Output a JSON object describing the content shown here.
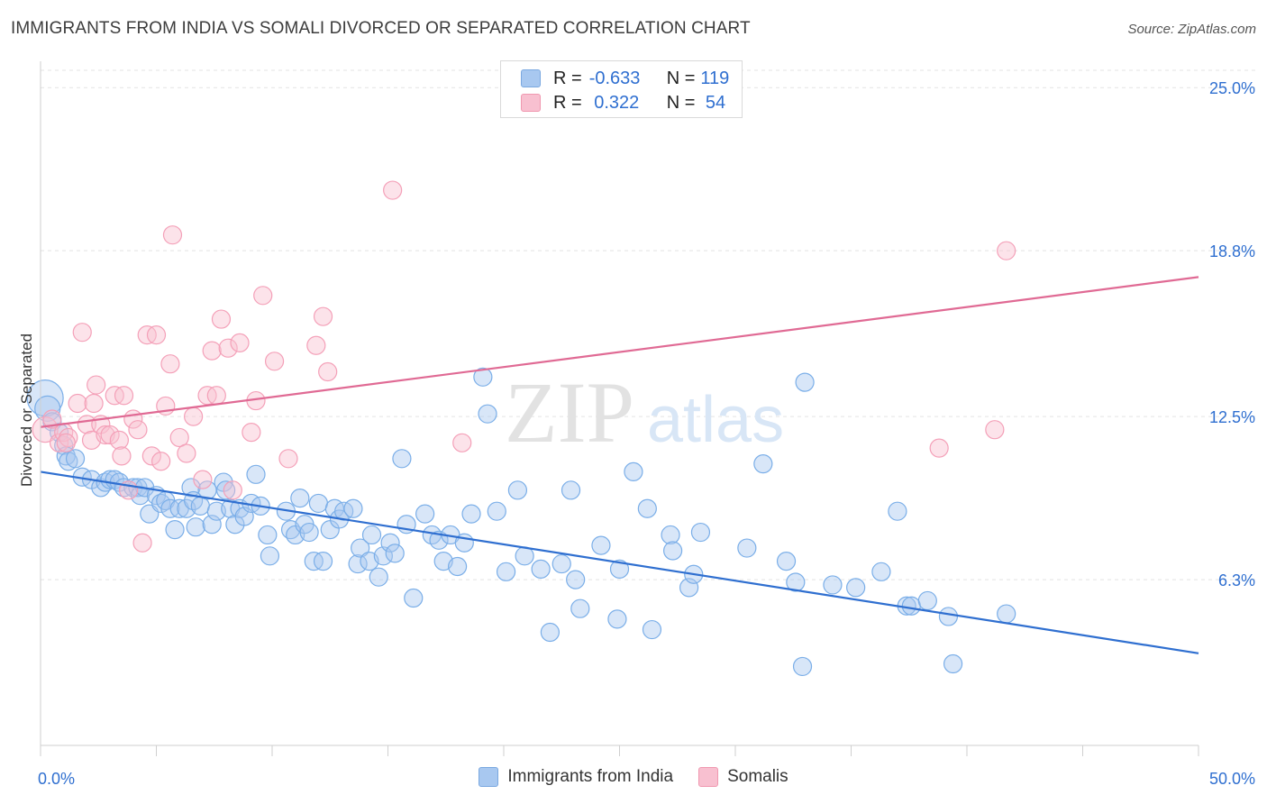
{
  "title": "IMMIGRANTS FROM INDIA VS SOMALI DIVORCED OR SEPARATED CORRELATION CHART",
  "source": "Source: ZipAtlas.com",
  "watermark": {
    "zip": "ZIP",
    "atlas": "atlas"
  },
  "legend_stats": [
    {
      "r_label": "R = ",
      "r_value": "-0.633",
      "n_label": "N = ",
      "n_value": "119",
      "color": "#a8c8f0",
      "border": "#7aa8e0"
    },
    {
      "r_label": "R = ",
      "r_value": " 0.322",
      "n_label": "N = ",
      "n_value": " 54",
      "color": "#f8c0d0",
      "border": "#f098b0"
    }
  ],
  "bottom_legend": [
    {
      "label": "Immigrants from India",
      "color": "#a8c8f0",
      "border": "#7aa8e0"
    },
    {
      "label": "Somalis",
      "color": "#f8c0d0",
      "border": "#f098b0"
    }
  ],
  "chart_data": {
    "type": "scatter",
    "title": "IMMIGRANTS FROM INDIA VS SOMALI DIVORCED OR SEPARATED CORRELATION CHART",
    "xlabel": "",
    "ylabel": "Divorced or Separated",
    "xlim": [
      0,
      50
    ],
    "ylim": [
      0,
      26
    ],
    "x_tick_labels": [
      "0.0%",
      "50.0%"
    ],
    "y_ticks": [
      6.3,
      12.5,
      18.8,
      25.0
    ],
    "y_tick_labels": [
      "6.3%",
      "12.5%",
      "18.8%",
      "25.0%"
    ],
    "grid": true,
    "series": [
      {
        "name": "Immigrants from India",
        "color": "#7aaee8",
        "trend": {
          "x": [
            0,
            50
          ],
          "y": [
            10.4,
            3.5
          ],
          "color": "#2f6fd0"
        },
        "points": [
          [
            0.2,
            13.2,
            "l"
          ],
          [
            0.3,
            12.8,
            "m"
          ],
          [
            0.5,
            12.3
          ],
          [
            0.8,
            11.9
          ],
          [
            1.0,
            11.4
          ],
          [
            1.1,
            11.0
          ],
          [
            1.2,
            10.8
          ],
          [
            1.5,
            10.9
          ],
          [
            1.8,
            10.2
          ],
          [
            2.2,
            10.1
          ],
          [
            2.6,
            9.8
          ],
          [
            2.8,
            10.0
          ],
          [
            3.0,
            10.1
          ],
          [
            3.2,
            10.1
          ],
          [
            3.4,
            10.0
          ],
          [
            3.6,
            9.8
          ],
          [
            4.0,
            9.8
          ],
          [
            4.2,
            9.8
          ],
          [
            4.3,
            9.5
          ],
          [
            4.5,
            9.8
          ],
          [
            4.7,
            8.8
          ],
          [
            5.0,
            9.5
          ],
          [
            5.2,
            9.2
          ],
          [
            5.4,
            9.3
          ],
          [
            5.6,
            9.0
          ],
          [
            5.8,
            8.2
          ],
          [
            6.0,
            9.0
          ],
          [
            6.3,
            9.0
          ],
          [
            6.5,
            9.8
          ],
          [
            6.6,
            9.3
          ],
          [
            6.7,
            8.3
          ],
          [
            6.9,
            9.1
          ],
          [
            7.2,
            9.7
          ],
          [
            7.4,
            8.4
          ],
          [
            7.6,
            8.9
          ],
          [
            7.9,
            10.0
          ],
          [
            8.0,
            9.7
          ],
          [
            8.2,
            9.0
          ],
          [
            8.4,
            8.4
          ],
          [
            8.6,
            9.0
          ],
          [
            8.8,
            8.7
          ],
          [
            9.1,
            9.2
          ],
          [
            9.3,
            10.3
          ],
          [
            9.5,
            9.1
          ],
          [
            9.8,
            8.0
          ],
          [
            9.9,
            7.2
          ],
          [
            10.6,
            8.9
          ],
          [
            10.8,
            8.2
          ],
          [
            11.0,
            8.0
          ],
          [
            11.2,
            9.4
          ],
          [
            11.4,
            8.4
          ],
          [
            11.6,
            8.1
          ],
          [
            11.8,
            7.0
          ],
          [
            12.0,
            9.2
          ],
          [
            12.2,
            7.0
          ],
          [
            12.5,
            8.2
          ],
          [
            12.7,
            9.0
          ],
          [
            12.9,
            8.6
          ],
          [
            13.1,
            8.9
          ],
          [
            13.5,
            9.0
          ],
          [
            13.7,
            6.9
          ],
          [
            13.8,
            7.5
          ],
          [
            14.2,
            7.0
          ],
          [
            14.3,
            8.0
          ],
          [
            14.6,
            6.4
          ],
          [
            14.8,
            7.2
          ],
          [
            15.1,
            7.7
          ],
          [
            15.3,
            7.3
          ],
          [
            15.6,
            10.9
          ],
          [
            15.8,
            8.4
          ],
          [
            16.1,
            5.6
          ],
          [
            16.6,
            8.8
          ],
          [
            16.9,
            8.0
          ],
          [
            17.2,
            7.8
          ],
          [
            17.4,
            7.0
          ],
          [
            17.7,
            8.0
          ],
          [
            18.0,
            6.8
          ],
          [
            18.3,
            7.7
          ],
          [
            18.6,
            8.8
          ],
          [
            19.1,
            14.0
          ],
          [
            19.3,
            12.6
          ],
          [
            19.7,
            8.9
          ],
          [
            20.1,
            6.6
          ],
          [
            20.6,
            9.7
          ],
          [
            20.9,
            7.2
          ],
          [
            21.6,
            6.7
          ],
          [
            22.0,
            4.3
          ],
          [
            22.5,
            6.9
          ],
          [
            22.9,
            9.7
          ],
          [
            23.1,
            6.3
          ],
          [
            23.3,
            5.2
          ],
          [
            24.2,
            7.6
          ],
          [
            24.9,
            4.8
          ],
          [
            25.0,
            6.7
          ],
          [
            25.6,
            10.4
          ],
          [
            26.2,
            9.0
          ],
          [
            26.4,
            4.4
          ],
          [
            27.2,
            8.0
          ],
          [
            27.3,
            7.4
          ],
          [
            28.0,
            6.0
          ],
          [
            28.2,
            6.5
          ],
          [
            28.5,
            8.1
          ],
          [
            30.5,
            7.5
          ],
          [
            31.2,
            10.7
          ],
          [
            32.2,
            7.0
          ],
          [
            32.6,
            6.2
          ],
          [
            32.9,
            3.0
          ],
          [
            33.0,
            13.8
          ],
          [
            34.2,
            6.1
          ],
          [
            35.2,
            6.0
          ],
          [
            36.3,
            6.6
          ],
          [
            37.0,
            8.9
          ],
          [
            37.4,
            5.3
          ],
          [
            37.6,
            5.3
          ],
          [
            38.3,
            5.5
          ],
          [
            39.2,
            4.9
          ],
          [
            39.4,
            3.1
          ],
          [
            41.7,
            5.0
          ]
        ]
      },
      {
        "name": "Somalis",
        "color": "#f4a0b8",
        "trend": {
          "x": [
            0,
            50
          ],
          "y": [
            12.1,
            17.8
          ],
          "color": "#e06a94"
        },
        "points": [
          [
            0.2,
            12.0,
            "m"
          ],
          [
            0.5,
            12.4
          ],
          [
            0.8,
            11.5
          ],
          [
            1.0,
            11.9
          ],
          [
            1.2,
            11.7
          ],
          [
            1.6,
            13.0
          ],
          [
            1.8,
            15.7
          ],
          [
            2.0,
            12.2
          ],
          [
            2.2,
            11.6
          ],
          [
            2.4,
            13.7
          ],
          [
            2.6,
            12.2
          ],
          [
            2.8,
            11.8
          ],
          [
            3.0,
            11.8
          ],
          [
            3.2,
            13.3
          ],
          [
            3.4,
            11.6
          ],
          [
            3.6,
            13.3
          ],
          [
            3.8,
            9.7
          ],
          [
            4.0,
            12.4
          ],
          [
            4.2,
            12.0
          ],
          [
            4.4,
            7.7
          ],
          [
            4.6,
            15.6
          ],
          [
            4.8,
            11.0
          ],
          [
            5.0,
            15.6
          ],
          [
            5.2,
            10.8
          ],
          [
            5.4,
            12.9
          ],
          [
            5.6,
            14.5
          ],
          [
            5.7,
            19.4
          ],
          [
            6.0,
            11.7
          ],
          [
            6.3,
            11.1
          ],
          [
            7.0,
            10.1
          ],
          [
            7.2,
            13.3
          ],
          [
            7.4,
            15.0
          ],
          [
            7.6,
            13.3
          ],
          [
            7.8,
            16.2
          ],
          [
            8.1,
            15.1
          ],
          [
            8.3,
            9.7
          ],
          [
            8.6,
            15.3
          ],
          [
            9.1,
            11.9
          ],
          [
            9.3,
            13.1
          ],
          [
            9.6,
            17.1
          ],
          [
            10.1,
            14.6
          ],
          [
            10.7,
            10.9
          ],
          [
            11.9,
            15.2
          ],
          [
            12.2,
            16.3
          ],
          [
            12.4,
            14.2
          ],
          [
            15.2,
            21.1
          ],
          [
            18.2,
            11.5
          ],
          [
            41.2,
            12.0
          ],
          [
            41.7,
            18.8
          ],
          [
            1.1,
            11.5
          ],
          [
            2.3,
            13.0
          ],
          [
            3.5,
            11.0
          ],
          [
            6.6,
            12.5
          ],
          [
            38.8,
            11.3
          ]
        ]
      }
    ]
  }
}
